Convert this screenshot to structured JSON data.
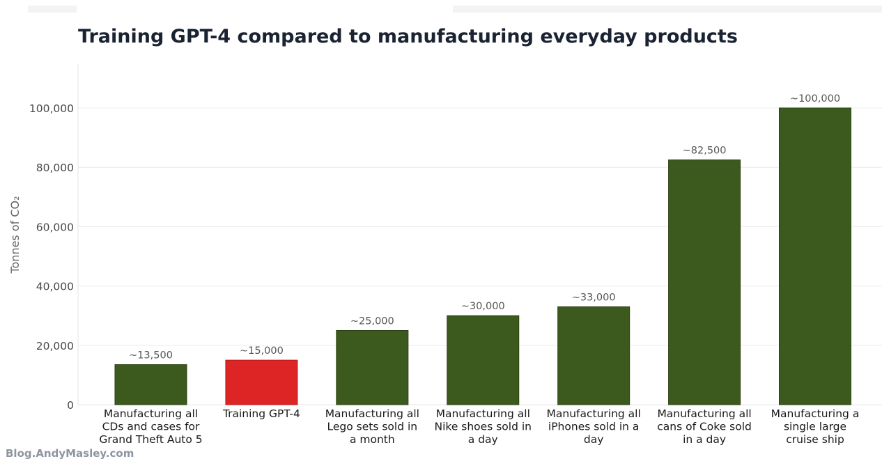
{
  "watermark": "Blog.AndyMasley.com",
  "colors": {
    "default_bar": "#3d5a1e",
    "default_bar_edge": "#2a4012",
    "highlight_bar": "#de2525",
    "highlight_bar_edge": "#b81818"
  },
  "chart_data": {
    "type": "bar",
    "title": "Training GPT-4 compared to manufacturing everyday products",
    "ylabel": "Tonnes of CO₂",
    "xlabel": "",
    "ylim": [
      0,
      115000
    ],
    "yticks": [
      0,
      20000,
      40000,
      60000,
      80000,
      100000
    ],
    "ytick_labels": [
      "0",
      "20,000",
      "40,000",
      "60,000",
      "80,000",
      "100,000"
    ],
    "grid": "horizontal",
    "categories": [
      [
        "Manufacturing all",
        "CDs and cases for",
        "Grand Theft Auto 5"
      ],
      [
        "Training GPT-4"
      ],
      [
        "Manufacturing all",
        "Lego sets sold in",
        "a month"
      ],
      [
        "Manufacturing all",
        "Nike shoes sold in",
        "a day"
      ],
      [
        "Manufacturing all",
        "iPhones sold in a",
        "day"
      ],
      [
        "Manufacturing all",
        "cans of Coke sold",
        "in a day"
      ],
      [
        "Manufacturing a",
        "single large",
        "cruise ship"
      ]
    ],
    "values": [
      13500,
      15000,
      25000,
      30000,
      33000,
      82500,
      100000
    ],
    "data_labels": [
      "~13,500",
      "~15,000",
      "~25,000",
      "~30,000",
      "~33,000",
      "~82,500",
      "~100,000"
    ],
    "highlight_index": 1
  }
}
